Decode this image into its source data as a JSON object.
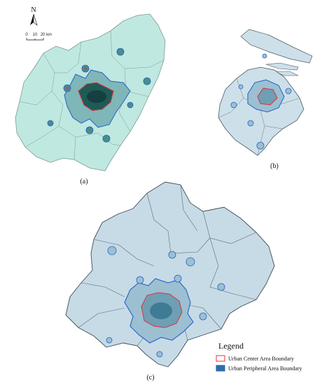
{
  "panels": {
    "a": {
      "label": "(a)"
    },
    "b": {
      "label": "(b)"
    },
    "c": {
      "label": "(c)"
    }
  },
  "north_arrow": {
    "letter": "N"
  },
  "scale_bar": {
    "ticks": [
      "0",
      "10",
      "20 km"
    ]
  },
  "legend": {
    "title": "Legend",
    "items": [
      {
        "label": "Urban Center Area Boundary",
        "color": "#e0303a"
      },
      {
        "label": "Urban Peripheral Area Boundary",
        "color": "#2460c8"
      }
    ]
  },
  "colors": {
    "panel_a_fill": "#bfe8e0",
    "panel_b_fill": "#cde0ea",
    "panel_c_fill": "#c7dbe6",
    "hotspot_dark": "#1f5a57",
    "district_line": "#6a7a80"
  }
}
